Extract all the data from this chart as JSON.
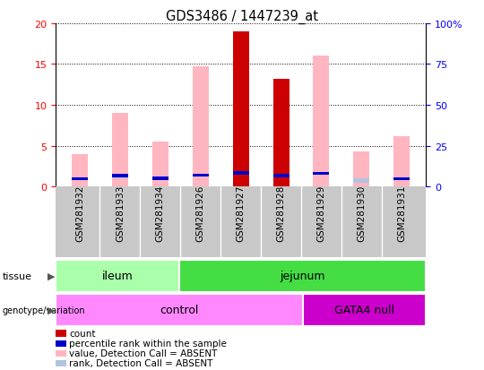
{
  "title": "GDS3486 / 1447239_at",
  "samples": [
    "GSM281932",
    "GSM281933",
    "GSM281934",
    "GSM281926",
    "GSM281927",
    "GSM281928",
    "GSM281929",
    "GSM281930",
    "GSM281931"
  ],
  "count_values": [
    0,
    0,
    0,
    0,
    19.0,
    13.2,
    0,
    0,
    0
  ],
  "rank_values": [
    4.7,
    6.5,
    5.1,
    6.9,
    8.4,
    6.7,
    8.0,
    0,
    4.7
  ],
  "value_absent": [
    4.0,
    9.0,
    5.5,
    14.7,
    0,
    0,
    16.0,
    4.3,
    6.2
  ],
  "rank_absent": [
    0,
    6.5,
    0,
    0,
    0,
    0,
    0,
    3.7,
    0
  ],
  "ylim_left": [
    0,
    20
  ],
  "ylim_right": [
    0,
    100
  ],
  "yticks_left": [
    0,
    5,
    10,
    15,
    20
  ],
  "yticks_right": [
    0,
    25,
    50,
    75,
    100
  ],
  "yticklabels_right": [
    "0",
    "25",
    "50",
    "75",
    "100%"
  ],
  "tissue_groups": [
    {
      "label": "ileum",
      "start": 0,
      "end": 3,
      "color": "#aaffaa"
    },
    {
      "label": "jejunum",
      "start": 3,
      "end": 9,
      "color": "#44dd44"
    }
  ],
  "genotype_groups": [
    {
      "label": "control",
      "start": 0,
      "end": 6,
      "color": "#ff88ff"
    },
    {
      "label": "GATA4 null",
      "start": 6,
      "end": 9,
      "color": "#cc00cc"
    }
  ],
  "colors": {
    "count": "#cc0000",
    "rank": "#0000cc",
    "value_absent": "#ffb6c1",
    "rank_absent": "#b0c4de",
    "xbg": "#c8c8c8"
  },
  "bar_width": 0.4,
  "legend_items": [
    {
      "color": "#cc0000",
      "label": "count"
    },
    {
      "color": "#0000cc",
      "label": "percentile rank within the sample"
    },
    {
      "color": "#ffb6c1",
      "label": "value, Detection Call = ABSENT"
    },
    {
      "color": "#b0c4de",
      "label": "rank, Detection Call = ABSENT"
    }
  ]
}
